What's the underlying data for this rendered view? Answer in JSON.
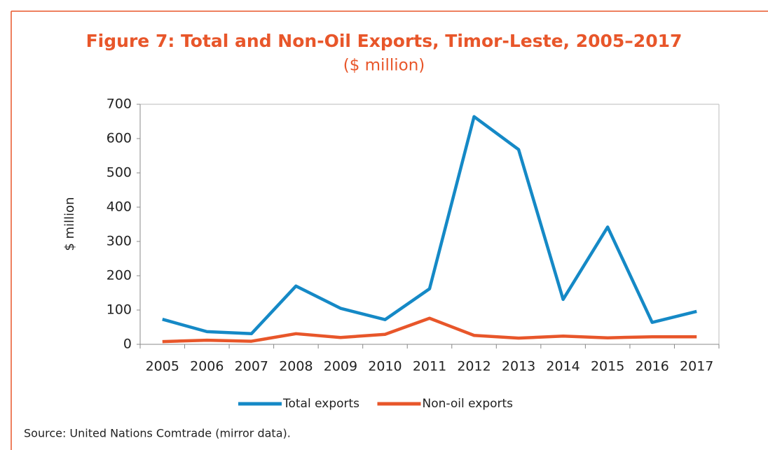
{
  "chart_data": {
    "type": "line",
    "title": "Figure 7: Total and Non-Oil Exports, Timor-Leste, 2005–2017",
    "subtitle": "($ million)",
    "y_label": "$ million",
    "categories": [
      "2005",
      "2006",
      "2007",
      "2008",
      "2009",
      "2010",
      "2011",
      "2012",
      "2013",
      "2014",
      "2015",
      "2016",
      "2017"
    ],
    "series": [
      {
        "name": "Total exports",
        "color": "#1589c6",
        "values": [
          73,
          37,
          31,
          170,
          105,
          72,
          162,
          664,
          568,
          131,
          342,
          64,
          96
        ]
      },
      {
        "name": "Non-oil exports",
        "color": "#e8562a",
        "values": [
          8,
          12,
          9,
          31,
          20,
          29,
          76,
          26,
          18,
          24,
          19,
          22,
          22
        ]
      }
    ],
    "ylim": [
      0,
      700
    ],
    "yticks": [
      0,
      100,
      200,
      300,
      400,
      500,
      600,
      700
    ],
    "grid": false,
    "legend": "bottom",
    "source": "Source: United Nations Comtrade (mirror data)."
  }
}
